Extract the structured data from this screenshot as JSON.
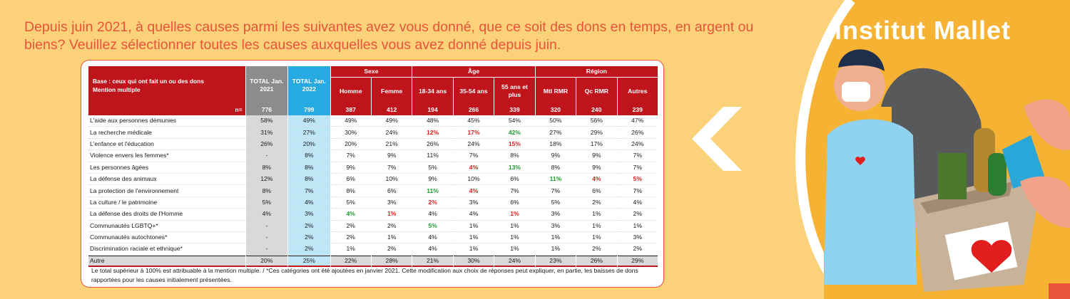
{
  "question": "Depuis juin 2021, à quelles causes parmi les suivantes avez vous donné, que ce soit des dons en temps, en argent ou biens? Veuillez sélectionner toutes les causes auxquelles vous avez donné depuis juin.",
  "logo": "institut Mallet",
  "table": {
    "base_label_line1": "Base : ceux qui ont fait un ou des dons",
    "base_label_line2": "Mention multiple",
    "total2021": "TOTAL Jan. 2021",
    "total2022": "TOTAL Jan. 2022",
    "group_sexe": "Sexe",
    "group_age": "Âge",
    "group_region": "Région",
    "columns": [
      "Homme",
      "Femme",
      "18-34 ans",
      "35-54 ans",
      "55 ans et plus",
      "Mtl RMR",
      "Qc RMR",
      "Autres"
    ],
    "n_label": "n=",
    "n_values": [
      "776",
      "799",
      "387",
      "412",
      "194",
      "266",
      "339",
      "320",
      "240",
      "239"
    ],
    "rows": [
      {
        "label": "L'aide aux personnes démunies",
        "values": [
          "58%",
          "49%",
          "49%",
          "49%",
          "48%",
          "45%",
          "54%",
          "50%",
          "56%",
          "47%"
        ],
        "sig": [
          "",
          "",
          "",
          "",
          "",
          "",
          "",
          "",
          "",
          ""
        ]
      },
      {
        "label": "La recherche médicale",
        "values": [
          "31%",
          "27%",
          "30%",
          "24%",
          "12%",
          "17%",
          "42%",
          "27%",
          "29%",
          "26%"
        ],
        "sig": [
          "",
          "",
          "",
          "",
          "red",
          "red",
          "green",
          "",
          "",
          ""
        ]
      },
      {
        "label": "L'enfance et l'éducation",
        "values": [
          "26%",
          "20%",
          "20%",
          "21%",
          "26%",
          "24%",
          "15%",
          "18%",
          "17%",
          "24%"
        ],
        "sig": [
          "",
          "",
          "",
          "",
          "",
          "",
          "red",
          "",
          "",
          ""
        ]
      },
      {
        "label": "Violence envers les femmes*",
        "values": [
          "-",
          "8%",
          "7%",
          "9%",
          "11%",
          "7%",
          "8%",
          "9%",
          "9%",
          "7%"
        ],
        "sig": [
          "",
          "",
          "",
          "",
          "",
          "",
          "",
          "",
          "",
          ""
        ]
      },
      {
        "label": "Les personnes âgées",
        "values": [
          "8%",
          "8%",
          "9%",
          "7%",
          "5%",
          "4%",
          "13%",
          "8%",
          "9%",
          "7%"
        ],
        "sig": [
          "",
          "",
          "",
          "",
          "",
          "red",
          "green",
          "",
          "",
          ""
        ]
      },
      {
        "label": "La défense des animaux",
        "values": [
          "12%",
          "8%",
          "6%",
          "10%",
          "9%",
          "10%",
          "6%",
          "11%",
          "4%",
          "5%"
        ],
        "sig": [
          "",
          "",
          "",
          "",
          "",
          "",
          "",
          "green",
          "red",
          "red"
        ]
      },
      {
        "label": "La protection de l'environnement",
        "values": [
          "8%",
          "7%",
          "8%",
          "6%",
          "11%",
          "4%",
          "7%",
          "7%",
          "6%",
          "7%"
        ],
        "sig": [
          "",
          "",
          "",
          "",
          "green",
          "red",
          "",
          "",
          "",
          ""
        ]
      },
      {
        "label": "La culture / le patrimoine",
        "values": [
          "5%",
          "4%",
          "5%",
          "3%",
          "2%",
          "3%",
          "6%",
          "5%",
          "2%",
          "4%"
        ],
        "sig": [
          "",
          "",
          "",
          "",
          "red",
          "",
          "",
          "",
          "",
          ""
        ]
      },
      {
        "label": "La défense des droits de l'Homme",
        "values": [
          "4%",
          "3%",
          "4%",
          "1%",
          "4%",
          "4%",
          "1%",
          "3%",
          "1%",
          "2%"
        ],
        "sig": [
          "",
          "",
          "green",
          "red",
          "",
          "",
          "red",
          "",
          "",
          ""
        ]
      },
      {
        "label": "Communautés LGBTQ+*",
        "values": [
          "-",
          "2%",
          "2%",
          "2%",
          "5%",
          "1%",
          "1%",
          "3%",
          "1%",
          "1%"
        ],
        "sig": [
          "",
          "",
          "",
          "",
          "green",
          "",
          "",
          "",
          "",
          ""
        ]
      },
      {
        "label": "Communautés autochtones*",
        "values": [
          "-",
          "2%",
          "2%",
          "1%",
          "4%",
          "1%",
          "1%",
          "1%",
          "1%",
          "3%"
        ],
        "sig": [
          "",
          "",
          "",
          "",
          "",
          "",
          "",
          "",
          "",
          ""
        ]
      },
      {
        "label": "Discrimination raciale et ethnique*",
        "values": [
          "-",
          "2%",
          "1%",
          "2%",
          "4%",
          "1%",
          "1%",
          "1%",
          "2%",
          "2%"
        ],
        "sig": [
          "",
          "",
          "",
          "",
          "",
          "",
          "",
          "",
          "",
          ""
        ]
      },
      {
        "label": "Autre",
        "values": [
          "20%",
          "25%",
          "22%",
          "28%",
          "21%",
          "30%",
          "24%",
          "23%",
          "26%",
          "29%"
        ],
        "sig": [
          "",
          "",
          "",
          "",
          "",
          "",
          "",
          "",
          "",
          ""
        ]
      }
    ]
  },
  "footnote": "Le total supérieur à 100% est attribuable à la mention multiple. / *Ces catégories ont été ajoutées en janvier 2021. Cette modification aux choix de réponses peut expliquer, en partie, les baisses de dons rapportées pour les causes initialement présentées.",
  "colors": {
    "background": "#fbd27a",
    "accent_red": "#c0141c",
    "question_text": "#e8533a",
    "total2021": "#8c8c8c",
    "total2022": "#27a9e1",
    "sig_up": "#1f9a2f",
    "sig_down": "#e21d1d"
  }
}
